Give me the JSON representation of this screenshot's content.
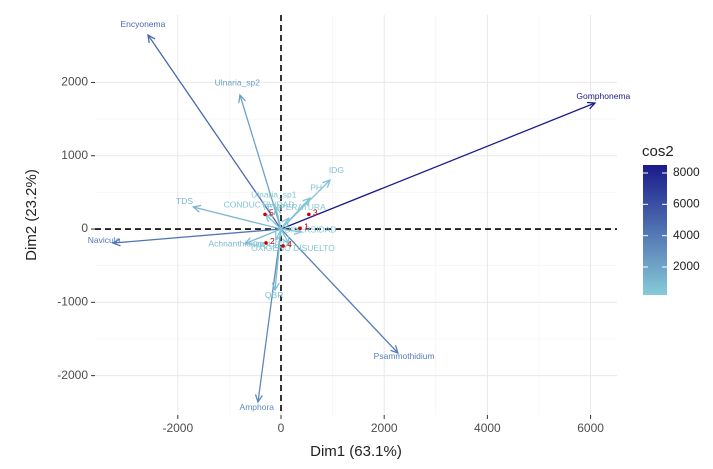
{
  "chart_data": {
    "type": "biplot",
    "xlabel": "Dim1 (63.1%)",
    "ylabel": "Dim2 (23.2%)",
    "xlim": [
      -3605,
      6512
    ],
    "ylim": [
      -2537,
      2920
    ],
    "xticks": [
      -2000,
      0,
      2000,
      4000,
      6000
    ],
    "yticks": [
      -2000,
      -1000,
      0,
      1000,
      2000
    ],
    "grid": true,
    "arrows": {
      "names": [
        "Encyonema",
        "Gomphonema",
        "Ulnaria_sp2",
        "Navicula",
        "Psammothidium",
        "Amphora",
        "QBR",
        "IDG",
        "PH",
        "TDS",
        "Achnanthidium",
        "Ulnaria_sp1",
        "CONDUCTIVIDAD",
        "TEMPERATURA",
        "DIVERSIDAD",
        "OXIGENO DISUELTO",
        "RIQUEZA"
      ],
      "x": [
        -2578,
        6085,
        -795,
        -3256,
        2267,
        -446,
        -116,
        950,
        562,
        -1700,
        -700,
        -100,
        -300,
        150,
        400,
        150,
        -100
      ],
      "y": [
        2647,
        1719,
        1828,
        -191,
        -1692,
        -2360,
        -832,
        668,
        423,
        300,
        -200,
        300,
        200,
        150,
        -40,
        -200,
        -150
      ],
      "cos2": [
        4800,
        8400,
        2200,
        4200,
        3800,
        3300,
        900,
        700,
        600,
        1200,
        1000,
        400,
        500,
        400,
        400,
        500,
        400
      ]
    },
    "points": {
      "labels": [
        "1",
        "2",
        "3",
        "4",
        "5"
      ],
      "x": [
        370,
        -290,
        540,
        40,
        -310
      ],
      "y": [
        10,
        -190,
        200,
        -230,
        200
      ],
      "color": "#cc0000"
    },
    "legend": {
      "title": "cos2",
      "lim": [
        213,
        8510
      ],
      "ticks": [
        2000,
        4000,
        6000,
        8000
      ],
      "low_color": "#86cbd8",
      "high_color": "#1a1a8a"
    }
  }
}
